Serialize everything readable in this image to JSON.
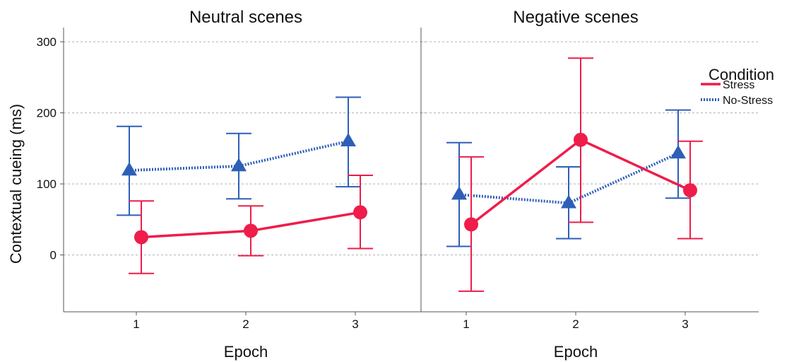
{
  "chart_data": {
    "type": "line",
    "ylabel": "Contextual cueing (ms)",
    "xlabel": "Epoch",
    "ylim": [
      -80,
      320
    ],
    "yticks": [
      0,
      100,
      200,
      300
    ],
    "grid": "horizontal-dashed",
    "categories": [
      "1",
      "2",
      "3"
    ],
    "legend": {
      "title": "Condition",
      "placement": "top-right",
      "entries": [
        {
          "label": "Stress",
          "color": "#ee1d4a",
          "style": "solid"
        },
        {
          "label": "No-Stress",
          "color": "#2e5fb8",
          "style": "dotted"
        }
      ]
    },
    "panels": [
      {
        "title": "Neutral scenes",
        "series": [
          {
            "name": "Stress",
            "values": [
              25,
              34,
              60
            ],
            "err_low": [
              -26,
              -1,
              9
            ],
            "err_high": [
              76,
              69,
              112
            ]
          },
          {
            "name": "No-Stress",
            "values": [
              119,
              125,
              160
            ],
            "err_low": [
              56,
              79,
              96
            ],
            "err_high": [
              181,
              171,
              222
            ]
          }
        ]
      },
      {
        "title": "Negative scenes",
        "series": [
          {
            "name": "Stress",
            "values": [
              43,
              162,
              91
            ],
            "err_low": [
              -51,
              46,
              23
            ],
            "err_high": [
              138,
              277,
              160
            ]
          },
          {
            "name": "No-Stress",
            "values": [
              85,
              73,
              143
            ],
            "err_low": [
              12,
              23,
              80
            ],
            "err_high": [
              158,
              124,
              204
            ]
          }
        ]
      }
    ]
  }
}
